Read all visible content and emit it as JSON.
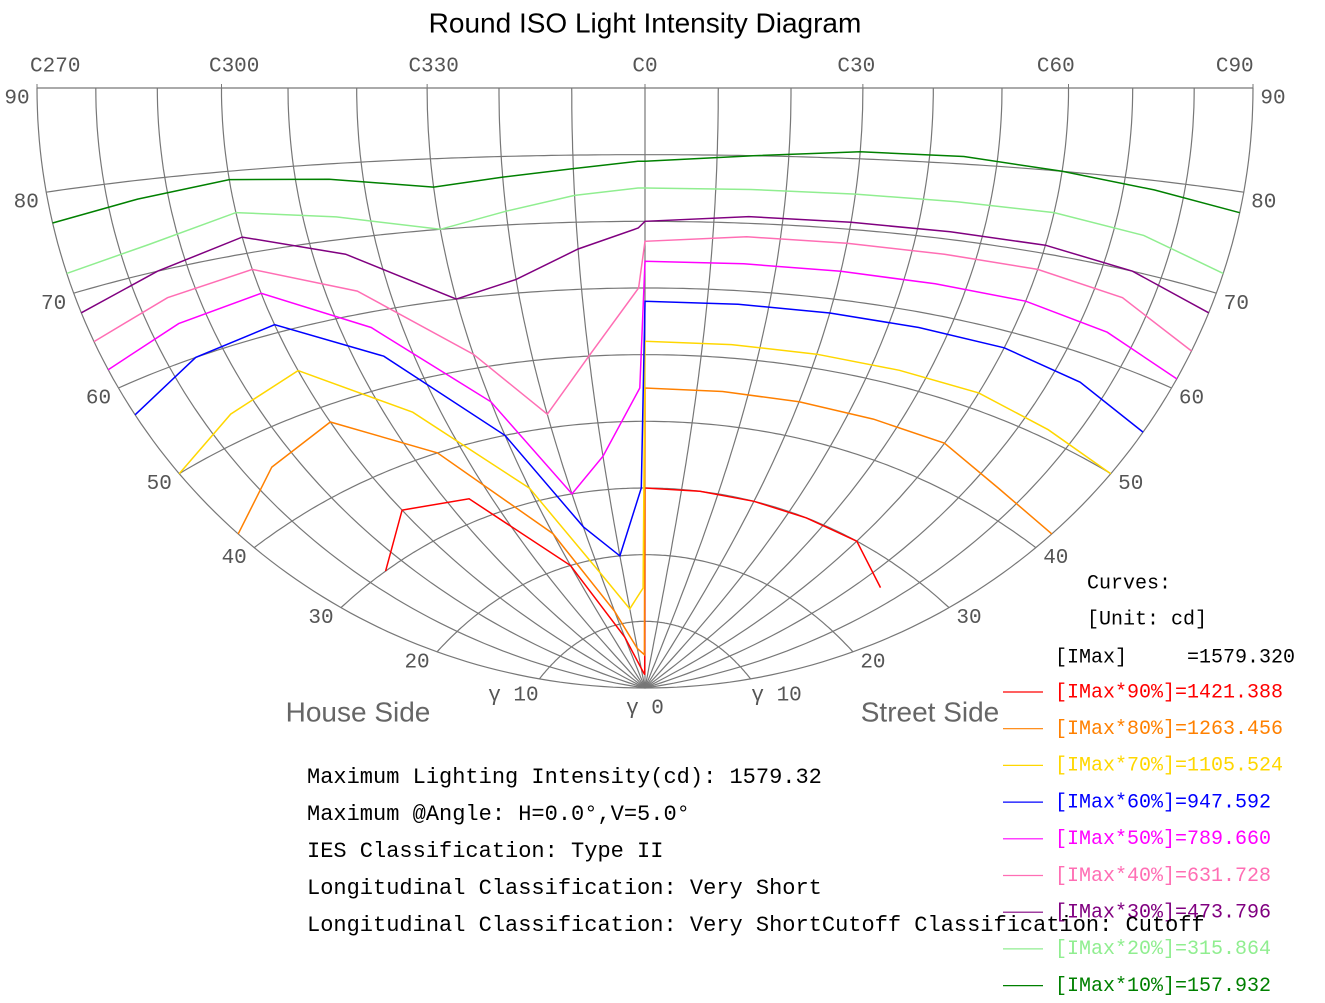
{
  "chart_data": {
    "type": "iso_polar",
    "title": "Round ISO Light Intensity Diagram",
    "xlim": [
      -90,
      90
    ],
    "ylim": [
      0,
      90
    ],
    "x": [
      -90,
      -75,
      -60,
      -45,
      -30,
      -20,
      -10,
      -1,
      0,
      15,
      30,
      45,
      60,
      75,
      90
    ],
    "xticks": [
      {
        "value": -90,
        "label": "C270"
      },
      {
        "value": -60,
        "label": "C300"
      },
      {
        "value": -30,
        "label": "C330"
      },
      {
        "value": 0,
        "label": "C0"
      },
      {
        "value": 30,
        "label": "C30"
      },
      {
        "value": 60,
        "label": "C60"
      },
      {
        "value": 90,
        "label": "C90"
      }
    ],
    "c_grid": [
      -90,
      -80,
      -70,
      -60,
      -50,
      -40,
      -30,
      -20,
      -10,
      0,
      10,
      20,
      30,
      40,
      50,
      60,
      70,
      80,
      90
    ],
    "yticks": [
      90,
      80,
      70,
      60,
      50,
      40,
      30,
      20,
      {
        "value": 10,
        "label": "γ 10"
      },
      {
        "value": 0,
        "label": "γ 0"
      }
    ],
    "annotations": [
      "House Side",
      "Street Side"
    ],
    "legend": {
      "title": "Curves:",
      "unit": "[Unit: cd]",
      "max": "[IMax]     =1579.320"
    },
    "series": [
      {
        "name": "[IMax*90%]=1421.388",
        "color": "#ff0000",
        "values": [
          null,
          30,
          35,
          33,
          20,
          8,
          3,
          2,
          30,
          30,
          30,
          30,
          30,
          27,
          null
        ]
      },
      {
        "name": "[IMax*80%]=1263.456",
        "color": "#ff8000",
        "values": [
          42,
          46,
          48,
          40,
          25,
          12,
          6,
          5,
          45,
          45,
          45,
          45,
          45,
          43,
          42
        ]
      },
      {
        "name": "[IMax*70%]=1105.524",
        "color": "#ffd700",
        "values": [
          50,
          53,
          55,
          46,
          32,
          18,
          12,
          15,
          52,
          52,
          52,
          52,
          52,
          51,
          50
        ]
      },
      {
        "name": "[IMax*60%]=947.592",
        "color": "#0000ff",
        "values": [
          57,
          60,
          61,
          54,
          40,
          25,
          20,
          30,
          58,
          58,
          58,
          58,
          58,
          57,
          55
        ]
      },
      {
        "name": "[IMax*50%]=789.660",
        "color": "#ff00ff",
        "values": [
          62,
          64,
          65,
          58,
          45,
          30,
          35,
          45,
          64,
          64,
          64,
          64,
          64,
          63,
          61
        ]
      },
      {
        "name": "[IMax*40%]=631.728",
        "color": "#ff6eb4",
        "values": [
          65,
          67,
          68,
          63,
          52,
          42,
          50,
          60,
          67,
          68,
          68,
          68,
          68,
          67,
          64
        ]
      },
      {
        "name": "[IMax*30%]=473.796",
        "color": "#800080",
        "values": [
          68,
          70,
          72,
          68,
          60,
          62,
          66,
          69,
          70,
          71,
          71,
          71,
          71,
          70,
          68
        ]
      },
      {
        "name": "[IMax*20%]=315.864",
        "color": "#90ee90",
        "values": [
          72,
          73,
          75,
          73,
          70,
          72,
          74,
          75,
          75,
          75,
          75,
          75,
          75,
          74,
          72
        ]
      },
      {
        "name": "[IMax*10%]=157.932",
        "color": "#008000",
        "values": [
          77,
          78,
          79,
          78,
          76,
          77,
          78,
          79,
          79,
          80,
          81,
          81,
          80,
          79,
          78
        ]
      }
    ]
  },
  "info": [
    "Maximum Lighting Intensity(cd): 1579.32",
    "Maximum @Angle: H=0.0°,V=5.0°",
    "IES Classification: Type II",
    "Longitudinal Classification: Very Short",
    "Longitudinal Classification: Very ShortCutoff Classification:  Cutoff"
  ]
}
